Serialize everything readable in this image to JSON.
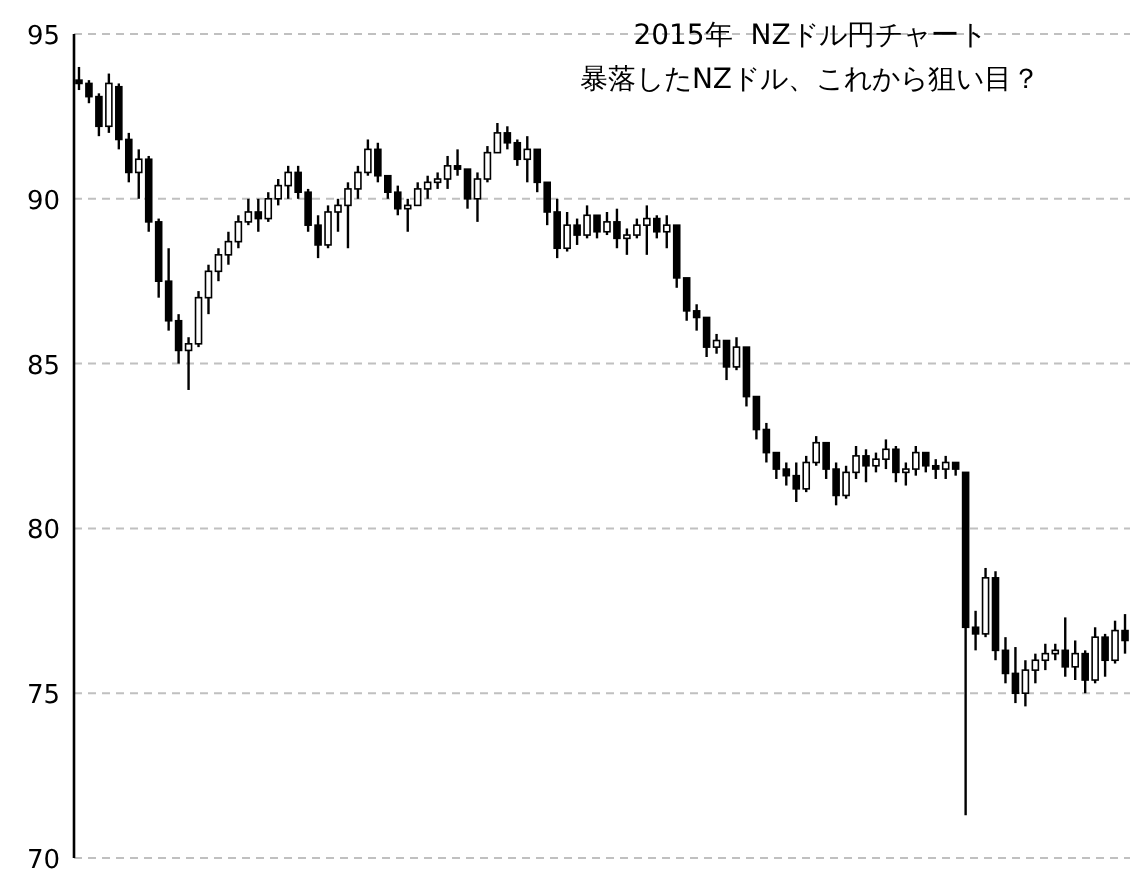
{
  "chart_data": {
    "type": "candlestick",
    "title": "2015年  NZドル円チャート",
    "subtitle": "暴落したNZドル、これから狙い目？",
    "color": "#000000",
    "ylim": [
      70,
      95
    ],
    "yticks": [
      70,
      75,
      80,
      85,
      90,
      95
    ],
    "grid": "y",
    "tick_labels": "y",
    "categories": [
      null,
      null,
      null,
      null,
      null,
      null,
      null,
      null,
      null,
      null,
      null,
      null,
      null,
      null,
      null,
      null,
      null,
      null,
      null,
      null,
      null,
      null,
      null,
      null,
      null,
      null,
      null,
      null,
      null,
      null,
      null,
      null,
      null,
      null,
      null,
      null,
      null,
      null,
      null,
      null,
      null,
      null,
      null,
      null,
      null,
      null,
      null,
      null,
      null,
      null,
      null,
      null,
      null,
      null,
      null,
      null,
      null,
      null,
      null,
      null,
      null,
      null,
      null,
      null,
      null,
      null,
      null,
      null,
      null,
      null,
      null,
      null,
      null,
      null,
      null,
      null,
      null,
      null,
      null,
      null,
      null,
      null,
      null,
      null,
      null,
      null,
      null,
      null,
      null,
      null,
      null,
      null,
      null,
      null,
      null,
      null,
      null,
      null,
      null,
      null,
      null,
      null,
      null,
      null,
      null,
      null
    ],
    "ohlc": [
      [
        93.6,
        94.0,
        93.3,
        93.5
      ],
      [
        93.5,
        93.6,
        92.9,
        93.1
      ],
      [
        93.1,
        93.2,
        91.9,
        92.2
      ],
      [
        92.2,
        93.8,
        92.0,
        93.5
      ],
      [
        93.4,
        93.5,
        91.5,
        91.8
      ],
      [
        91.8,
        92.0,
        90.5,
        90.8
      ],
      [
        90.8,
        91.5,
        90.0,
        91.2
      ],
      [
        91.2,
        91.3,
        89.0,
        89.3
      ],
      [
        89.3,
        89.4,
        87.0,
        87.5
      ],
      [
        87.5,
        88.5,
        86.0,
        86.3
      ],
      [
        86.3,
        86.5,
        85.0,
        85.4
      ],
      [
        85.4,
        85.8,
        84.2,
        85.6
      ],
      [
        85.6,
        87.2,
        85.5,
        87.0
      ],
      [
        87.0,
        88.0,
        86.5,
        87.8
      ],
      [
        87.8,
        88.5,
        87.5,
        88.3
      ],
      [
        88.3,
        89.0,
        88.0,
        88.7
      ],
      [
        88.7,
        89.5,
        88.5,
        89.3
      ],
      [
        89.3,
        90.0,
        89.2,
        89.6
      ],
      [
        89.6,
        90.0,
        89.0,
        89.4
      ],
      [
        89.4,
        90.2,
        89.3,
        90.0
      ],
      [
        90.0,
        90.6,
        89.8,
        90.4
      ],
      [
        90.4,
        91.0,
        90.0,
        90.8
      ],
      [
        90.8,
        91.0,
        90.0,
        90.2
      ],
      [
        90.2,
        90.3,
        89.0,
        89.2
      ],
      [
        89.2,
        89.5,
        88.2,
        88.6
      ],
      [
        88.6,
        89.8,
        88.5,
        89.6
      ],
      [
        89.6,
        90.0,
        89.0,
        89.8
      ],
      [
        89.8,
        90.5,
        88.5,
        90.3
      ],
      [
        90.3,
        91.0,
        90.0,
        90.8
      ],
      [
        90.8,
        91.8,
        90.7,
        91.5
      ],
      [
        91.5,
        91.7,
        90.5,
        90.7
      ],
      [
        90.7,
        90.7,
        90.0,
        90.2
      ],
      [
        90.2,
        90.4,
        89.5,
        89.7
      ],
      [
        89.7,
        90.0,
        89.0,
        89.8
      ],
      [
        89.8,
        90.5,
        89.8,
        90.3
      ],
      [
        90.3,
        90.7,
        90.0,
        90.5
      ],
      [
        90.5,
        90.8,
        90.3,
        90.6
      ],
      [
        90.6,
        91.3,
        90.3,
        91.0
      ],
      [
        91.0,
        91.5,
        90.7,
        90.9
      ],
      [
        90.9,
        90.9,
        89.7,
        90.0
      ],
      [
        90.0,
        90.8,
        89.3,
        90.6
      ],
      [
        90.6,
        91.6,
        90.5,
        91.4
      ],
      [
        91.4,
        92.3,
        91.4,
        92.0
      ],
      [
        92.0,
        92.2,
        91.5,
        91.7
      ],
      [
        91.7,
        91.8,
        91.0,
        91.2
      ],
      [
        91.2,
        91.9,
        90.5,
        91.5
      ],
      [
        91.5,
        91.5,
        90.2,
        90.5
      ],
      [
        90.5,
        90.5,
        89.2,
        89.6
      ],
      [
        89.6,
        90.0,
        88.2,
        88.5
      ],
      [
        88.5,
        89.6,
        88.4,
        89.2
      ],
      [
        89.2,
        89.4,
        88.6,
        88.9
      ],
      [
        88.9,
        89.8,
        88.8,
        89.5
      ],
      [
        89.5,
        89.5,
        88.8,
        89.0
      ],
      [
        89.0,
        89.6,
        88.9,
        89.3
      ],
      [
        89.3,
        89.7,
        88.5,
        88.8
      ],
      [
        88.8,
        89.1,
        88.3,
        88.9
      ],
      [
        88.9,
        89.4,
        88.8,
        89.2
      ],
      [
        89.2,
        89.8,
        88.3,
        89.4
      ],
      [
        89.4,
        89.5,
        88.8,
        89.0
      ],
      [
        89.0,
        89.5,
        88.5,
        89.2
      ],
      [
        89.2,
        89.2,
        87.3,
        87.6
      ],
      [
        87.6,
        87.6,
        86.3,
        86.6
      ],
      [
        86.6,
        86.8,
        86.0,
        86.4
      ],
      [
        86.4,
        86.4,
        85.2,
        85.5
      ],
      [
        85.5,
        85.9,
        85.3,
        85.7
      ],
      [
        85.7,
        85.7,
        84.5,
        84.9
      ],
      [
        84.9,
        85.8,
        84.8,
        85.5
      ],
      [
        85.5,
        85.5,
        83.7,
        84.0
      ],
      [
        84.0,
        84.0,
        82.7,
        83.0
      ],
      [
        83.0,
        83.2,
        82.0,
        82.3
      ],
      [
        82.3,
        82.3,
        81.5,
        81.8
      ],
      [
        81.8,
        82.0,
        81.3,
        81.6
      ],
      [
        81.6,
        82.0,
        80.8,
        81.2
      ],
      [
        81.2,
        82.2,
        81.1,
        82.0
      ],
      [
        82.0,
        82.8,
        81.9,
        82.6
      ],
      [
        82.6,
        82.6,
        81.5,
        81.8
      ],
      [
        81.8,
        82.0,
        80.7,
        81.0
      ],
      [
        81.0,
        81.9,
        80.9,
        81.7
      ],
      [
        81.7,
        82.5,
        81.5,
        82.2
      ],
      [
        82.2,
        82.4,
        81.4,
        81.9
      ],
      [
        81.9,
        82.3,
        81.7,
        82.1
      ],
      [
        82.1,
        82.7,
        81.8,
        82.4
      ],
      [
        82.4,
        82.5,
        81.4,
        81.7
      ],
      [
        81.7,
        82.0,
        81.3,
        81.8
      ],
      [
        81.8,
        82.5,
        81.6,
        82.3
      ],
      [
        82.3,
        82.3,
        81.7,
        81.9
      ],
      [
        81.9,
        82.1,
        81.5,
        81.8
      ],
      [
        81.8,
        82.2,
        81.5,
        82.0
      ],
      [
        82.0,
        82.0,
        81.6,
        81.8
      ],
      [
        81.7,
        81.7,
        71.3,
        77.0
      ],
      [
        77.0,
        77.5,
        76.3,
        76.8
      ],
      [
        76.8,
        78.8,
        76.7,
        78.5
      ],
      [
        78.5,
        78.7,
        76.0,
        76.3
      ],
      [
        76.3,
        76.7,
        75.3,
        75.6
      ],
      [
        75.6,
        76.4,
        74.7,
        75.0
      ],
      [
        75.0,
        76.0,
        74.6,
        75.7
      ],
      [
        75.7,
        76.2,
        75.3,
        76.0
      ],
      [
        76.0,
        76.5,
        75.7,
        76.2
      ],
      [
        76.2,
        76.5,
        76.0,
        76.3
      ],
      [
        76.3,
        77.3,
        75.5,
        75.8
      ],
      [
        75.8,
        76.6,
        75.4,
        76.2
      ],
      [
        76.2,
        76.3,
        75.0,
        75.4
      ],
      [
        75.4,
        77.0,
        75.3,
        76.7
      ],
      [
        76.7,
        76.8,
        75.5,
        76.0
      ],
      [
        76.0,
        77.2,
        75.9,
        76.9
      ],
      [
        76.9,
        77.4,
        76.2,
        76.6
      ]
    ]
  }
}
